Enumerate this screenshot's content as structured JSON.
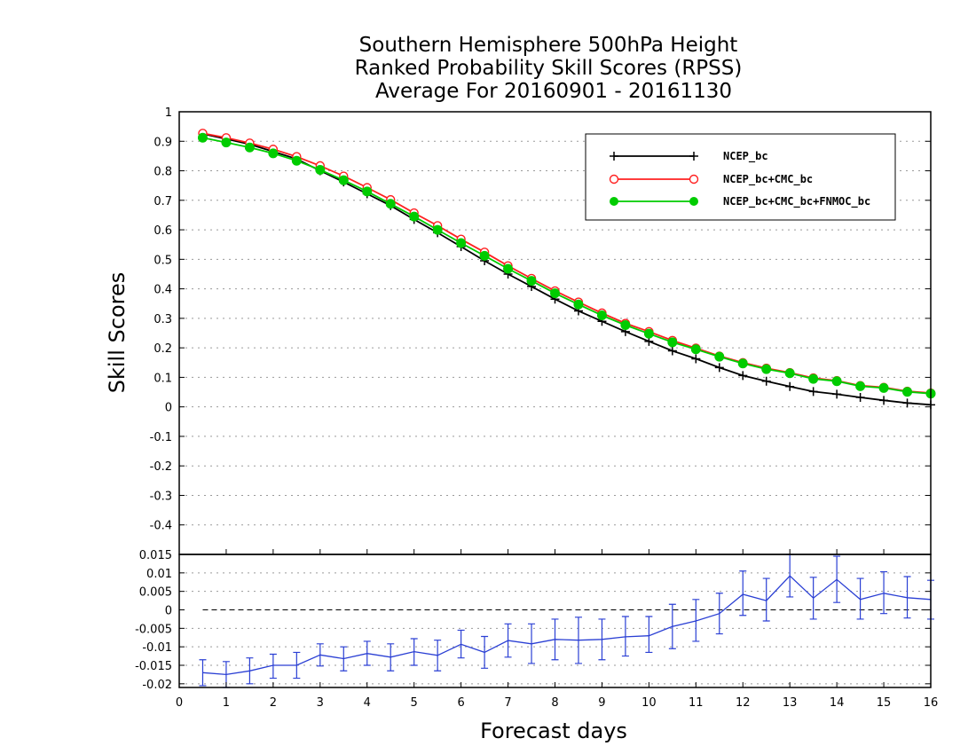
{
  "chart_data": [
    {
      "type": "line",
      "title": [
        "Southern Hemisphere 500hPa Height",
        "Ranked Probability Skill Scores (RPSS)",
        "Average For 20160901 - 20161130"
      ],
      "xlabel": "Forecast days",
      "ylabel": "Skill Scores",
      "xlim": [
        0,
        16
      ],
      "ylim": [
        -0.5,
        1
      ],
      "xticks": [
        "0",
        "1",
        "2",
        "3",
        "4",
        "5",
        "6",
        "7",
        "8",
        "9",
        "10",
        "11",
        "12",
        "13",
        "14",
        "15",
        "16"
      ],
      "yticks": [
        "1",
        "0.9",
        "0.8",
        "0.7",
        "0.6",
        "0.5",
        "0.4",
        "0.3",
        "0.2",
        "0.1",
        "0",
        "-0.1",
        "-0.2",
        "-0.3",
        "-0.4"
      ],
      "grid": true,
      "legend_position": "top-right",
      "x": [
        0.5,
        1,
        1.5,
        2,
        2.5,
        3,
        3.5,
        4,
        4.5,
        5,
        5.5,
        6,
        6.5,
        7,
        7.5,
        8,
        8.5,
        9,
        9.5,
        10,
        10.5,
        11,
        11.5,
        12,
        12.5,
        13,
        13.5,
        14,
        14.5,
        15,
        15.5,
        16
      ],
      "series": [
        {
          "name": "NCEP_bc",
          "color": "#000000",
          "marker": "plus",
          "values": [
            0.925,
            0.908,
            0.89,
            0.865,
            0.84,
            0.8,
            0.762,
            0.722,
            0.682,
            0.635,
            0.59,
            0.543,
            0.495,
            0.45,
            0.408,
            0.365,
            0.325,
            0.29,
            0.255,
            0.222,
            0.19,
            0.163,
            0.133,
            0.106,
            0.087,
            0.069,
            0.052,
            0.043,
            0.032,
            0.022,
            0.013,
            0.007
          ]
        },
        {
          "name": "NCEP_bc+CMC_bc",
          "color": "#ff2020",
          "marker": "open-circle",
          "values": [
            0.927,
            0.912,
            0.894,
            0.873,
            0.848,
            0.817,
            0.782,
            0.743,
            0.702,
            0.657,
            0.614,
            0.568,
            0.524,
            0.478,
            0.435,
            0.393,
            0.355,
            0.318,
            0.283,
            0.255,
            0.225,
            0.199,
            0.172,
            0.15,
            0.131,
            0.116,
            0.098,
            0.089,
            0.072,
            0.066,
            0.053,
            0.047
          ]
        },
        {
          "name": "NCEP_bc+CMC_bc+FNMOC_bc",
          "color": "#00cc00",
          "marker": "filled-circle",
          "values": [
            0.912,
            0.896,
            0.879,
            0.859,
            0.834,
            0.803,
            0.768,
            0.73,
            0.688,
            0.645,
            0.6,
            0.555,
            0.512,
            0.468,
            0.427,
            0.385,
            0.347,
            0.31,
            0.277,
            0.248,
            0.219,
            0.195,
            0.17,
            0.147,
            0.128,
            0.114,
            0.095,
            0.087,
            0.07,
            0.064,
            0.051,
            0.045
          ]
        }
      ]
    },
    {
      "type": "line",
      "xlabel": "Forecast days",
      "xlim": [
        0,
        16
      ],
      "ylim": [
        -0.021,
        0.015
      ],
      "yticks": [
        "0.015",
        "0.01",
        "0.005",
        "0",
        "-0.005",
        "-0.01",
        "-0.015",
        "-0.02"
      ],
      "reference_line": 0,
      "x": [
        0.5,
        1,
        1.5,
        2,
        2.5,
        3,
        3.5,
        4,
        4.5,
        5,
        5.5,
        6,
        6.5,
        7,
        7.5,
        8,
        8.5,
        9,
        9.5,
        10,
        10.5,
        11,
        11.5,
        12,
        12.5,
        13,
        13.5,
        14,
        14.5,
        15,
        15.5,
        16
      ],
      "series": [
        {
          "color": "#2a3fd4",
          "error_bars": true,
          "values": [
            -0.017,
            -0.0175,
            -0.0165,
            -0.015,
            -0.015,
            -0.0122,
            -0.0132,
            -0.0118,
            -0.0128,
            -0.0113,
            -0.0123,
            -0.0093,
            -0.0115,
            -0.0083,
            -0.0092,
            -0.008,
            -0.0082,
            -0.008,
            -0.0073,
            -0.007,
            -0.0045,
            -0.003,
            -0.001,
            0.0042,
            0.0025,
            0.0092,
            0.0032,
            0.0082,
            0.0028,
            0.0045,
            0.0033,
            0.0028
          ],
          "lower": [
            -0.0205,
            -0.021,
            -0.02,
            -0.0185,
            -0.0185,
            -0.0152,
            -0.0165,
            -0.015,
            -0.0165,
            -0.015,
            -0.0165,
            -0.013,
            -0.0158,
            -0.0128,
            -0.0145,
            -0.0135,
            -0.0145,
            -0.0135,
            -0.0125,
            -0.0115,
            -0.0105,
            -0.0085,
            -0.0065,
            -0.0015,
            -0.003,
            0.0035,
            -0.0025,
            0.002,
            -0.0025,
            -0.001,
            -0.0022,
            -0.0025
          ],
          "upper": [
            -0.0135,
            -0.014,
            -0.013,
            -0.012,
            -0.0115,
            -0.0092,
            -0.01,
            -0.0085,
            -0.0092,
            -0.0078,
            -0.0082,
            -0.0055,
            -0.0072,
            -0.0038,
            -0.0038,
            -0.0025,
            -0.002,
            -0.0025,
            -0.0018,
            -0.0018,
            0.0015,
            0.0028,
            0.0045,
            0.0105,
            0.0085,
            0.015,
            0.0088,
            0.0145,
            0.0085,
            0.0103,
            0.009,
            0.008
          ]
        }
      ]
    }
  ]
}
